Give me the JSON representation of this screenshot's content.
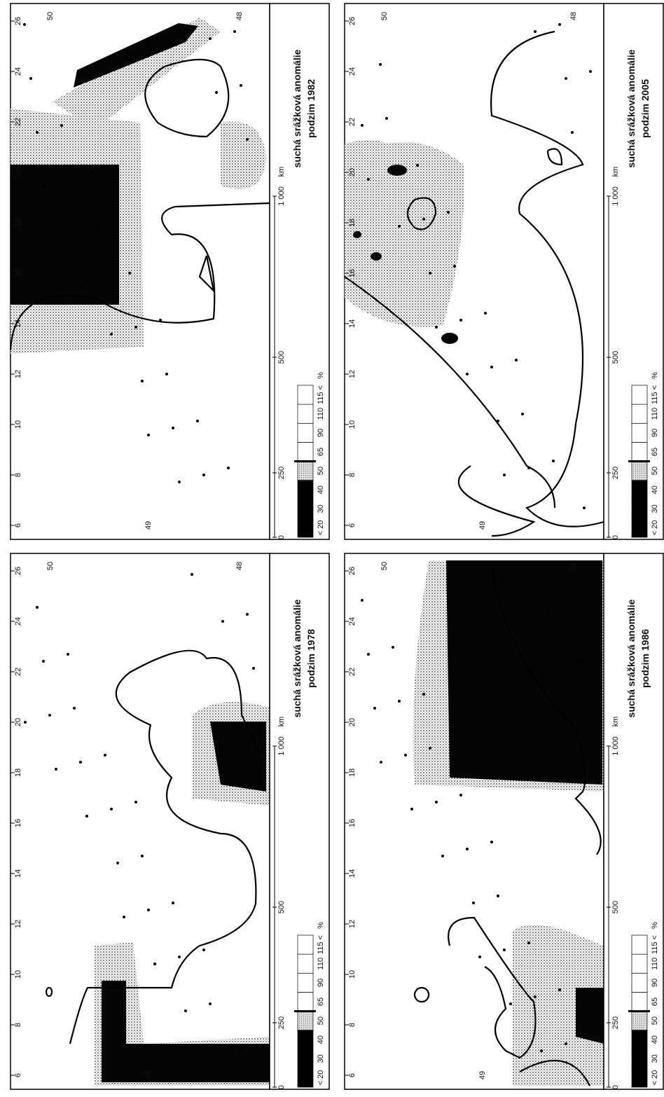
{
  "panels": [
    {
      "title": "suchá srážková anomálie",
      "subtitle": "podzim 1982"
    },
    {
      "title": "suchá srážková anomálie",
      "subtitle": "podzim 2005"
    },
    {
      "title": "suchá srážková anomálie",
      "subtitle": "podzim 1978"
    },
    {
      "title": "suchá srážková anomálie",
      "subtitle": "podzim 1986"
    }
  ],
  "legend": {
    "labels": [
      "< 20",
      "30",
      "40",
      "50",
      "65",
      "90",
      "110",
      "115 <"
    ],
    "unit": "%"
  },
  "scale": {
    "labels": [
      "0",
      "250",
      "500",
      "1 000"
    ],
    "unit": "km"
  },
  "lon_labels": [
    "6",
    "8",
    "10",
    "12",
    "14",
    "16",
    "18",
    "20",
    "22",
    "24",
    "26"
  ],
  "lat_labels": [
    "50",
    "49",
    "48"
  ]
}
